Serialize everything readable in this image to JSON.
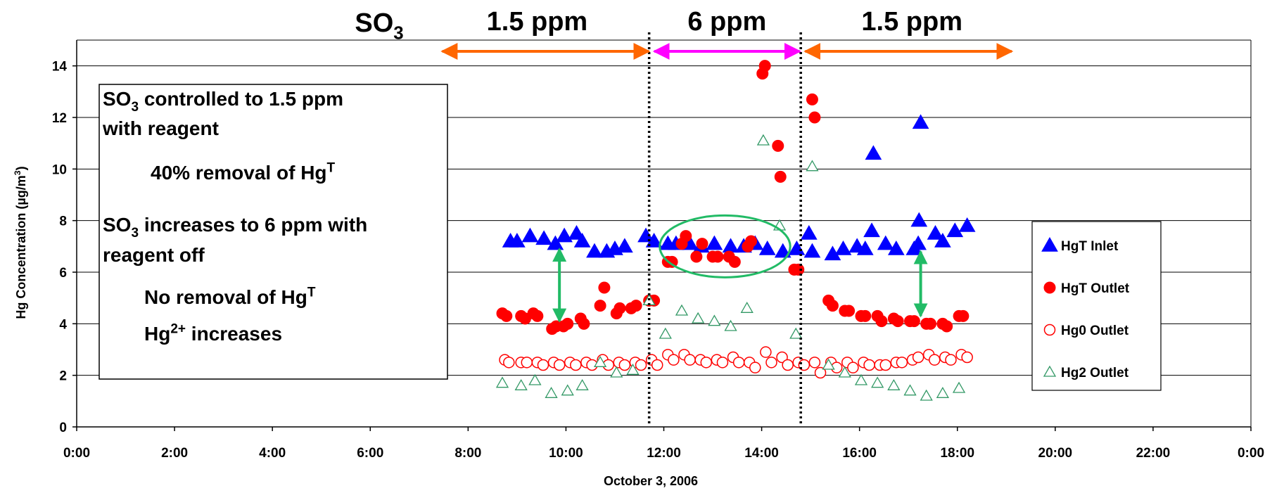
{
  "chart_data": {
    "type": "scatter",
    "xlabel": "October 3, 2006",
    "ylabel": "Hg Concentration (µg/m³)",
    "xlim": [
      "0:00",
      "24:00"
    ],
    "ylim": [
      0,
      15
    ],
    "x_ticks": [
      "0:00",
      "2:00",
      "4:00",
      "6:00",
      "8:00",
      "10:00",
      "12:00",
      "14:00",
      "16:00",
      "18:00",
      "20:00",
      "22:00",
      "0:00"
    ],
    "y_ticks": [
      0,
      2,
      4,
      6,
      8,
      10,
      12,
      14
    ],
    "grid": "horizontal",
    "legend_position": "right",
    "series": [
      {
        "name": "HgT Inlet",
        "marker": "filled-triangle",
        "color": "#0000ff",
        "points": [
          [
            "8:52",
            7.2
          ],
          [
            "9:00",
            7.2
          ],
          [
            "9:16",
            7.4
          ],
          [
            "9:33",
            7.3
          ],
          [
            "9:47",
            7.1
          ],
          [
            "9:58",
            7.4
          ],
          [
            "10:13",
            7.5
          ],
          [
            "10:20",
            7.2
          ],
          [
            "10:35",
            6.8
          ],
          [
            "10:50",
            6.8
          ],
          [
            "11:00",
            6.9
          ],
          [
            "11:12",
            7.0
          ],
          [
            "11:38",
            7.4
          ],
          [
            "11:48",
            7.2
          ],
          [
            "12:05",
            7.1
          ],
          [
            "12:15",
            7.1
          ],
          [
            "12:32",
            7.1
          ],
          [
            "12:46",
            7.0
          ],
          [
            "13:02",
            7.1
          ],
          [
            "13:22",
            7.0
          ],
          [
            "13:38",
            7.0
          ],
          [
            "13:52",
            7.1
          ],
          [
            "14:07",
            6.9
          ],
          [
            "14:26",
            6.8
          ],
          [
            "14:43",
            6.9
          ],
          [
            "14:58",
            7.5
          ],
          [
            "15:02",
            6.8
          ],
          [
            "15:27",
            6.7
          ],
          [
            "15:40",
            6.9
          ],
          [
            "15:57",
            7.0
          ],
          [
            "16:07",
            6.9
          ],
          [
            "16:15",
            7.6
          ],
          [
            "16:32",
            7.1
          ],
          [
            "16:45",
            6.9
          ],
          [
            "17:07",
            6.9
          ],
          [
            "17:12",
            7.1
          ],
          [
            "17:13",
            8.0
          ],
          [
            "17:33",
            7.5
          ],
          [
            "17:42",
            7.2
          ],
          [
            "17:57",
            7.6
          ],
          [
            "18:12",
            7.8
          ],
          [
            "16:17",
            10.6
          ],
          [
            "17:15",
            11.8
          ]
        ]
      },
      {
        "name": "HgT Outlet",
        "marker": "filled-circle",
        "color": "#ff0000",
        "points": [
          [
            "8:42",
            4.4
          ],
          [
            "8:47",
            4.3
          ],
          [
            "9:05",
            4.3
          ],
          [
            "9:10",
            4.2
          ],
          [
            "9:20",
            4.4
          ],
          [
            "9:25",
            4.3
          ],
          [
            "9:43",
            3.8
          ],
          [
            "9:48",
            3.9
          ],
          [
            "9:57",
            3.9
          ],
          [
            "10:02",
            4.0
          ],
          [
            "10:18",
            4.2
          ],
          [
            "10:22",
            4.0
          ],
          [
            "10:42",
            4.7
          ],
          [
            "10:47",
            5.4
          ],
          [
            "11:02",
            4.4
          ],
          [
            "11:06",
            4.6
          ],
          [
            "11:20",
            4.6
          ],
          [
            "11:26",
            4.7
          ],
          [
            "11:42",
            4.9
          ],
          [
            "11:48",
            4.9
          ],
          [
            "12:05",
            6.4
          ],
          [
            "12:10",
            6.4
          ],
          [
            "12:22",
            7.1
          ],
          [
            "12:27",
            7.4
          ],
          [
            "12:40",
            6.6
          ],
          [
            "12:47",
            7.1
          ],
          [
            "13:00",
            6.6
          ],
          [
            "13:06",
            6.6
          ],
          [
            "13:20",
            6.6
          ],
          [
            "13:27",
            6.4
          ],
          [
            "13:43",
            7.0
          ],
          [
            "13:47",
            7.2
          ],
          [
            "14:01",
            13.7
          ],
          [
            "14:04",
            14.0
          ],
          [
            "14:20",
            10.9
          ],
          [
            "14:23",
            9.7
          ],
          [
            "14:40",
            6.1
          ],
          [
            "14:45",
            6.1
          ],
          [
            "15:02",
            12.7
          ],
          [
            "15:05",
            12.0
          ],
          [
            "15:22",
            4.9
          ],
          [
            "15:27",
            4.7
          ],
          [
            "15:42",
            4.5
          ],
          [
            "15:47",
            4.5
          ],
          [
            "16:02",
            4.3
          ],
          [
            "16:07",
            4.3
          ],
          [
            "16:22",
            4.3
          ],
          [
            "16:27",
            4.1
          ],
          [
            "16:42",
            4.2
          ],
          [
            "16:47",
            4.1
          ],
          [
            "17:02",
            4.1
          ],
          [
            "17:07",
            4.1
          ],
          [
            "17:22",
            4.0
          ],
          [
            "17:27",
            4.0
          ],
          [
            "17:42",
            4.0
          ],
          [
            "17:47",
            3.9
          ],
          [
            "18:02",
            4.3
          ],
          [
            "18:07",
            4.3
          ]
        ]
      },
      {
        "name": "Hg0 Outlet",
        "marker": "open-circle",
        "color": "#ff0000",
        "points": [
          [
            "8:45",
            2.6
          ],
          [
            "8:50",
            2.5
          ],
          [
            "9:05",
            2.5
          ],
          [
            "9:12",
            2.5
          ],
          [
            "9:25",
            2.5
          ],
          [
            "9:32",
            2.4
          ],
          [
            "9:45",
            2.5
          ],
          [
            "9:52",
            2.4
          ],
          [
            "10:05",
            2.5
          ],
          [
            "10:12",
            2.4
          ],
          [
            "10:25",
            2.5
          ],
          [
            "10:32",
            2.4
          ],
          [
            "10:45",
            2.6
          ],
          [
            "10:52",
            2.4
          ],
          [
            "11:05",
            2.5
          ],
          [
            "11:12",
            2.4
          ],
          [
            "11:25",
            2.5
          ],
          [
            "11:32",
            2.4
          ],
          [
            "11:45",
            2.6
          ],
          [
            "11:52",
            2.4
          ],
          [
            "12:05",
            2.8
          ],
          [
            "12:12",
            2.6
          ],
          [
            "12:25",
            2.8
          ],
          [
            "12:32",
            2.6
          ],
          [
            "12:45",
            2.6
          ],
          [
            "12:52",
            2.5
          ],
          [
            "13:05",
            2.6
          ],
          [
            "13:12",
            2.5
          ],
          [
            "13:25",
            2.7
          ],
          [
            "13:32",
            2.5
          ],
          [
            "13:45",
            2.5
          ],
          [
            "13:52",
            2.3
          ],
          [
            "14:05",
            2.9
          ],
          [
            "14:12",
            2.5
          ],
          [
            "14:25",
            2.7
          ],
          [
            "14:32",
            2.4
          ],
          [
            "14:45",
            2.5
          ],
          [
            "14:52",
            2.4
          ],
          [
            "15:05",
            2.5
          ],
          [
            "15:12",
            2.1
          ],
          [
            "15:25",
            2.5
          ],
          [
            "15:32",
            2.3
          ],
          [
            "15:45",
            2.5
          ],
          [
            "15:52",
            2.3
          ],
          [
            "16:05",
            2.5
          ],
          [
            "16:12",
            2.4
          ],
          [
            "16:25",
            2.4
          ],
          [
            "16:32",
            2.4
          ],
          [
            "16:45",
            2.5
          ],
          [
            "16:52",
            2.5
          ],
          [
            "17:05",
            2.6
          ],
          [
            "17:12",
            2.7
          ],
          [
            "17:25",
            2.8
          ],
          [
            "17:32",
            2.6
          ],
          [
            "17:45",
            2.7
          ],
          [
            "17:52",
            2.6
          ],
          [
            "18:05",
            2.8
          ],
          [
            "18:12",
            2.7
          ]
        ]
      },
      {
        "name": "Hg2 Outlet",
        "marker": "open-triangle",
        "color": "#339966",
        "points": [
          [
            "8:42",
            1.7
          ],
          [
            "9:05",
            1.6
          ],
          [
            "9:22",
            1.8
          ],
          [
            "9:42",
            1.3
          ],
          [
            "10:02",
            1.4
          ],
          [
            "10:20",
            1.6
          ],
          [
            "10:42",
            2.5
          ],
          [
            "11:02",
            2.1
          ],
          [
            "11:22",
            2.2
          ],
          [
            "11:42",
            4.9
          ],
          [
            "12:02",
            3.6
          ],
          [
            "12:22",
            4.5
          ],
          [
            "12:42",
            4.2
          ],
          [
            "13:02",
            4.1
          ],
          [
            "13:22",
            3.9
          ],
          [
            "13:42",
            4.6
          ],
          [
            "14:02",
            11.1
          ],
          [
            "14:22",
            7.8
          ],
          [
            "14:42",
            3.6
          ],
          [
            "15:02",
            10.1
          ],
          [
            "15:22",
            2.4
          ],
          [
            "15:42",
            2.1
          ],
          [
            "16:02",
            1.8
          ],
          [
            "16:22",
            1.7
          ],
          [
            "16:42",
            1.6
          ],
          [
            "17:02",
            1.4
          ],
          [
            "17:22",
            1.2
          ],
          [
            "17:42",
            1.3
          ],
          [
            "18:02",
            1.5
          ]
        ]
      }
    ],
    "regions": [
      {
        "label": "1.5 ppm",
        "start": "7:25",
        "end": "11:45",
        "color": "#ff6600"
      },
      {
        "label": "6 ppm",
        "start": "11:45",
        "end": "14:50",
        "color": "#ff00ff"
      },
      {
        "label": "1.5 ppm",
        "start": "14:50",
        "end": "19:10",
        "color": "#ff6600"
      }
    ],
    "region_prefix": "SO",
    "region_prefix_sub": "3",
    "dividers": [
      "11:42",
      "14:48"
    ],
    "text_box_lines": [
      {
        "parts": [
          "SO",
          "3",
          " controlled to 1.5 ppm"
        ],
        "styles": [
          "n",
          "sub",
          "n"
        ]
      },
      {
        "parts": [
          "with reagent"
        ],
        "styles": [
          "n"
        ]
      },
      {
        "parts": [
          "40% removal of Hg",
          "T"
        ],
        "styles": [
          "n",
          "sup"
        ]
      },
      {
        "parts": [
          "SO",
          "3",
          " increases to 6 ppm with"
        ],
        "styles": [
          "n",
          "sub",
          "n"
        ]
      },
      {
        "parts": [
          "reagent off"
        ],
        "styles": [
          "n"
        ]
      },
      {
        "parts": [
          "No removal of Hg",
          "T"
        ],
        "styles": [
          "n",
          "sup"
        ]
      },
      {
        "parts": [
          "Hg",
          "2+",
          " increases"
        ],
        "styles": [
          "n",
          "sup",
          "n"
        ]
      }
    ],
    "annotations": {
      "ellipse_color": "#22bb66",
      "arrow_color": "#22bb66",
      "arrows": [
        {
          "x": "9:52",
          "from": 4.1,
          "to": 6.9
        },
        {
          "x": "17:15",
          "from": 4.3,
          "to": 6.8
        }
      ],
      "ellipse": {
        "x_start": "11:55",
        "x_end": "14:35",
        "y_low": 5.8,
        "y_high": 8.2
      }
    }
  }
}
